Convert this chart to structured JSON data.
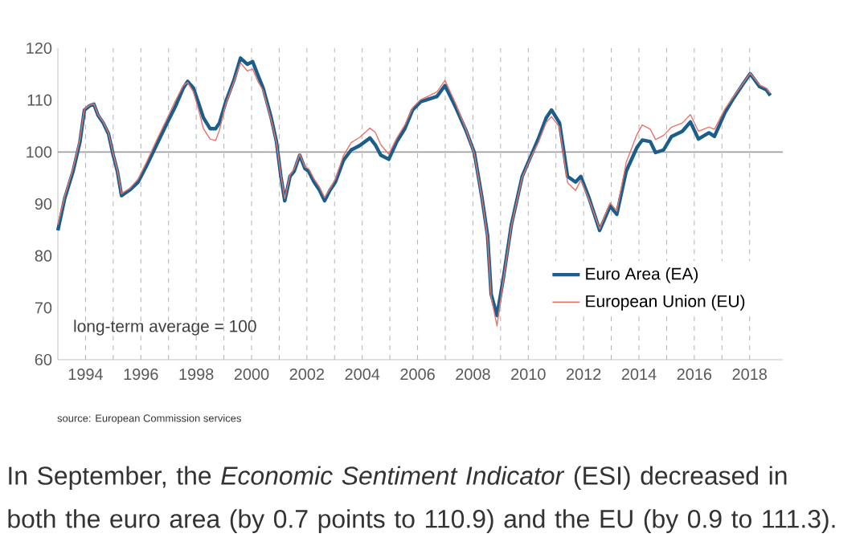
{
  "chart_data": {
    "type": "line",
    "x": [
      1993.0,
      1993.25,
      1993.55,
      1993.8,
      1993.96,
      1994.15,
      1994.3,
      1994.45,
      1994.64,
      1994.83,
      1995.0,
      1995.15,
      1995.3,
      1995.6,
      1995.9,
      1996.2,
      1996.57,
      1996.95,
      1997.24,
      1997.53,
      1997.69,
      1997.9,
      1998.1,
      1998.26,
      1998.5,
      1998.7,
      1998.84,
      1999.07,
      1999.36,
      1999.6,
      1999.85,
      2000.04,
      2000.23,
      2000.42,
      2000.71,
      2000.9,
      2001.06,
      2001.2,
      2001.39,
      2001.54,
      2001.74,
      2001.93,
      2002.06,
      2002.26,
      2002.45,
      2002.64,
      2002.84,
      2003.03,
      2003.32,
      2003.6,
      2003.9,
      2004.28,
      2004.47,
      2004.67,
      2004.96,
      2005.25,
      2005.54,
      2005.82,
      2006.11,
      2006.41,
      2006.7,
      2006.99,
      2007.37,
      2007.76,
      2008.05,
      2008.33,
      2008.53,
      2008.66,
      2008.87,
      2009.1,
      2009.39,
      2009.78,
      2010.07,
      2010.36,
      2010.65,
      2010.84,
      2011.13,
      2011.42,
      2011.71,
      2011.9,
      2012.2,
      2012.58,
      2012.96,
      2013.2,
      2013.54,
      2013.93,
      2014.12,
      2014.41,
      2014.6,
      2014.89,
      2015.18,
      2015.57,
      2015.86,
      2016.15,
      2016.53,
      2016.73,
      2017.11,
      2017.4,
      2017.79,
      2018.02,
      2018.36,
      2018.6,
      2018.75
    ],
    "series": [
      {
        "name": "Euro Area (EA)",
        "color": "#1b5e8c",
        "values": [
          84.9,
          91.1,
          96.3,
          102,
          108.1,
          108.9,
          109.2,
          107.1,
          105.6,
          103.5,
          99.4,
          96.3,
          91.6,
          92.7,
          94.2,
          97.3,
          101.4,
          105.6,
          108.7,
          112.3,
          113.6,
          112.3,
          109.2,
          106.6,
          104.5,
          104.5,
          105.6,
          109.7,
          113.8,
          118.1,
          116.9,
          117.4,
          114.8,
          112.3,
          106.6,
          102,
          95.3,
          90.6,
          95.3,
          96.3,
          99.4,
          96.8,
          96.3,
          94.2,
          92.7,
          90.6,
          92.7,
          94.2,
          98.4,
          100.4,
          101.2,
          102.7,
          101.4,
          99.4,
          98.6,
          102,
          104.5,
          108.1,
          109.7,
          110.2,
          110.7,
          112.8,
          108.7,
          104,
          99.9,
          91.1,
          83.9,
          72.6,
          68.5,
          75.7,
          86,
          95.3,
          98.9,
          102.5,
          106.6,
          108.1,
          105.6,
          95.3,
          94.2,
          95.3,
          91.1,
          84.9,
          89.6,
          88,
          96.3,
          100.9,
          102.3,
          102,
          99.9,
          100.4,
          103,
          104,
          105.8,
          102.5,
          103.7,
          103,
          107.6,
          110.2,
          113.3,
          115.1,
          112.6,
          112,
          110.9
        ]
      },
      {
        "name": "European Union (EU)",
        "color": "#e8736c",
        "values": [
          86,
          91.5,
          96.8,
          102.5,
          108.3,
          109,
          109.3,
          107.2,
          105.8,
          103.6,
          99.6,
          96.5,
          92,
          93,
          94.8,
          98,
          102.3,
          106.5,
          109.8,
          112.8,
          113.4,
          111.6,
          107.8,
          104.5,
          102.5,
          102.2,
          104.2,
          109.3,
          113.5,
          117.2,
          115.6,
          116,
          113.6,
          111.8,
          106.2,
          101.8,
          95.5,
          91,
          95.6,
          96.7,
          99.6,
          97.1,
          96.8,
          94.8,
          93.3,
          91.2,
          93,
          94.8,
          99.3,
          101.8,
          102.8,
          104.6,
          103.8,
          101.4,
          99.6,
          102.7,
          105.2,
          108.5,
          110.1,
          110.8,
          111.6,
          113.8,
          109.4,
          104.2,
          99.7,
          91,
          83.5,
          72,
          66.5,
          75.3,
          85.8,
          95.1,
          98.7,
          101.8,
          105.7,
          106.8,
          104.8,
          94.1,
          92.6,
          94.6,
          90.8,
          85.2,
          90.2,
          88.6,
          98,
          103.4,
          105.2,
          104.4,
          102.4,
          103.2,
          104.8,
          105.6,
          107.2,
          104,
          104.8,
          104.4,
          108.3,
          110.5,
          113.4,
          115.2,
          112.9,
          112.3,
          111.3
        ]
      }
    ],
    "xlim": [
      1993,
      2019.2
    ],
    "xticks": [
      1994,
      {
        "value": 1995,
        "label": null
      },
      1996,
      {
        "value": 1997,
        "label": null
      },
      1998,
      {
        "value": 1999,
        "label": null
      },
      2000,
      {
        "value": 2001,
        "label": null
      },
      2002,
      {
        "value": 2003,
        "label": null
      },
      2004,
      {
        "value": 2005,
        "label": null
      },
      2006,
      {
        "value": 2007,
        "label": null
      },
      2008,
      {
        "value": 2009,
        "label": null
      },
      2010,
      {
        "value": 2011,
        "label": null
      },
      2012,
      {
        "value": 2013,
        "label": null
      },
      2014,
      {
        "value": 2015,
        "label": null
      },
      2016,
      {
        "value": 2017,
        "label": null
      },
      2018
    ],
    "ylim": [
      60,
      120
    ],
    "yticks": [
      60,
      70,
      80,
      90,
      100,
      110,
      120
    ],
    "ref_lines": [
      {
        "axis": "y",
        "value": 100,
        "color": "#a0a0a0"
      }
    ],
    "grid": "x",
    "legend": "bottom right",
    "line_style": "solid",
    "annotations": [
      "long-term average = 100",
      "source: European Commission services",
      "In September, the *Economic Sentiment Indicator* (ESI) decreased in both the euro area (by 0.7 points to 110.9) and the EU (by 0.9 to 111.3)."
    ]
  }
}
